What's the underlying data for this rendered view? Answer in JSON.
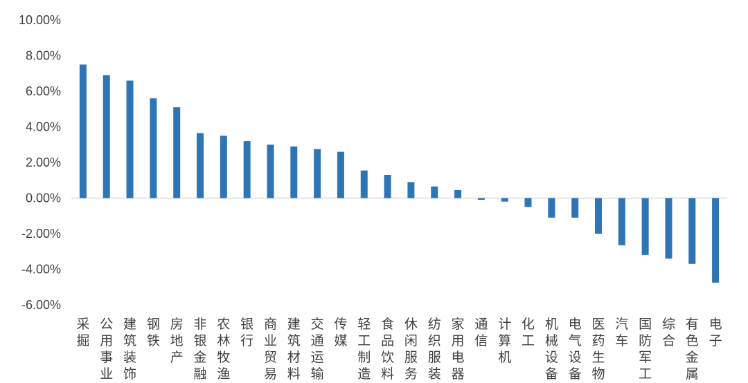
{
  "chart_data": {
    "type": "bar",
    "title": "",
    "xlabel": "",
    "ylabel": "",
    "ylim": [
      -6,
      10
    ],
    "y_ticks": [
      "10.00%",
      "8.00%",
      "6.00%",
      "4.00%",
      "2.00%",
      "0.00%",
      "-2.00%",
      "-4.00%",
      "-6.00%"
    ],
    "y_tick_values": [
      10,
      8,
      6,
      4,
      2,
      0,
      -2,
      -4,
      -6
    ],
    "grid": false,
    "legend": "none",
    "bar_color": "#2e75b6",
    "categories": [
      "采掘",
      "公用事业",
      "建筑装饰",
      "钢铁",
      "房地产",
      "非银金融",
      "农林牧渔",
      "银行",
      "商业贸易",
      "建筑材料",
      "交通运输",
      "传媒",
      "轻工制造",
      "食品饮料",
      "休闲服务",
      "纺织服装",
      "家用电器",
      "通信",
      "计算机",
      "化工",
      "机械设备",
      "电气设备",
      "医药生物",
      "汽车",
      "国防军工",
      "综合",
      "有色金属",
      "电子"
    ],
    "values": [
      7.5,
      6.9,
      6.6,
      5.6,
      5.1,
      3.65,
      3.5,
      3.2,
      3.0,
      2.9,
      2.75,
      2.6,
      1.55,
      1.3,
      0.9,
      0.65,
      0.45,
      -0.1,
      -0.2,
      -0.5,
      -1.1,
      -1.1,
      -2.0,
      -2.65,
      -3.2,
      -3.4,
      -3.7,
      -4.75
    ]
  }
}
